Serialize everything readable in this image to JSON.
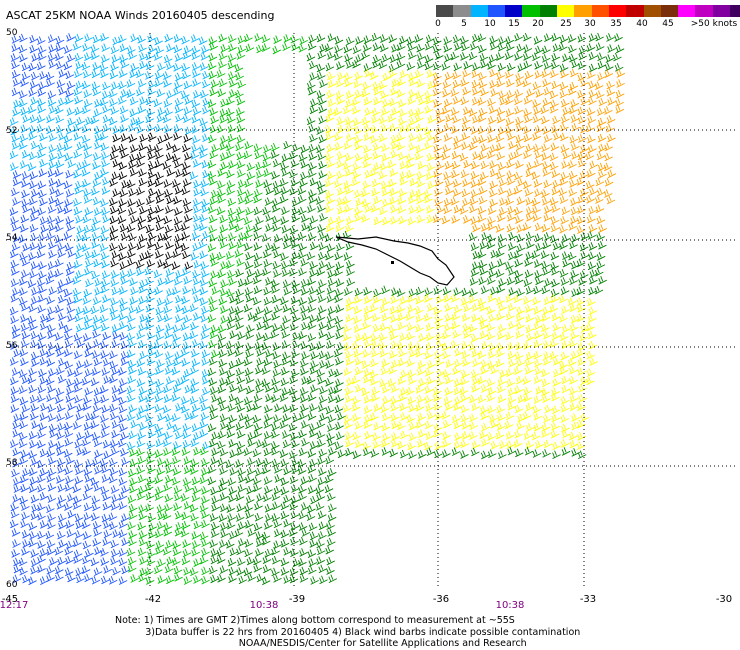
{
  "title": "ASCAT 25KM NOAA Winds 20160405 descending",
  "legend": {
    "colors": [
      "#4a4a4a",
      "#8c8c8c",
      "#00b4ff",
      "#1e55ff",
      "#0000c8",
      "#00c000",
      "#008000",
      "#ffff00",
      "#ffa000",
      "#ff5000",
      "#ff0000",
      "#c00000",
      "#a05000",
      "#7a2e0a",
      "#ff00ff",
      "#c000c0",
      "#8000a0",
      "#400060"
    ],
    "ticks": [
      "0",
      "5",
      "10",
      "15",
      "20",
      "25",
      "30",
      "35",
      "40",
      "45",
      ">50 knots"
    ]
  },
  "axes": {
    "lat_labels": [
      "50",
      "52",
      "54",
      "56",
      "58",
      "60"
    ],
    "lon_labels": [
      "-45",
      "-42",
      "-39",
      "-36",
      "-33",
      "-30"
    ]
  },
  "times": [
    "12:17",
    "10:38",
    "10:38"
  ],
  "notes": {
    "line1": "Note: 1) Times are GMT 2)Times along bottom correspond to measurement at ~55S",
    "line2": "          3)Data buffer is 22 hrs from 20160405 4) Black wind barbs indicate possible contamination",
    "line3": "                                         NOAA/NESDIS/Center for Satellite Applications and Research"
  }
}
